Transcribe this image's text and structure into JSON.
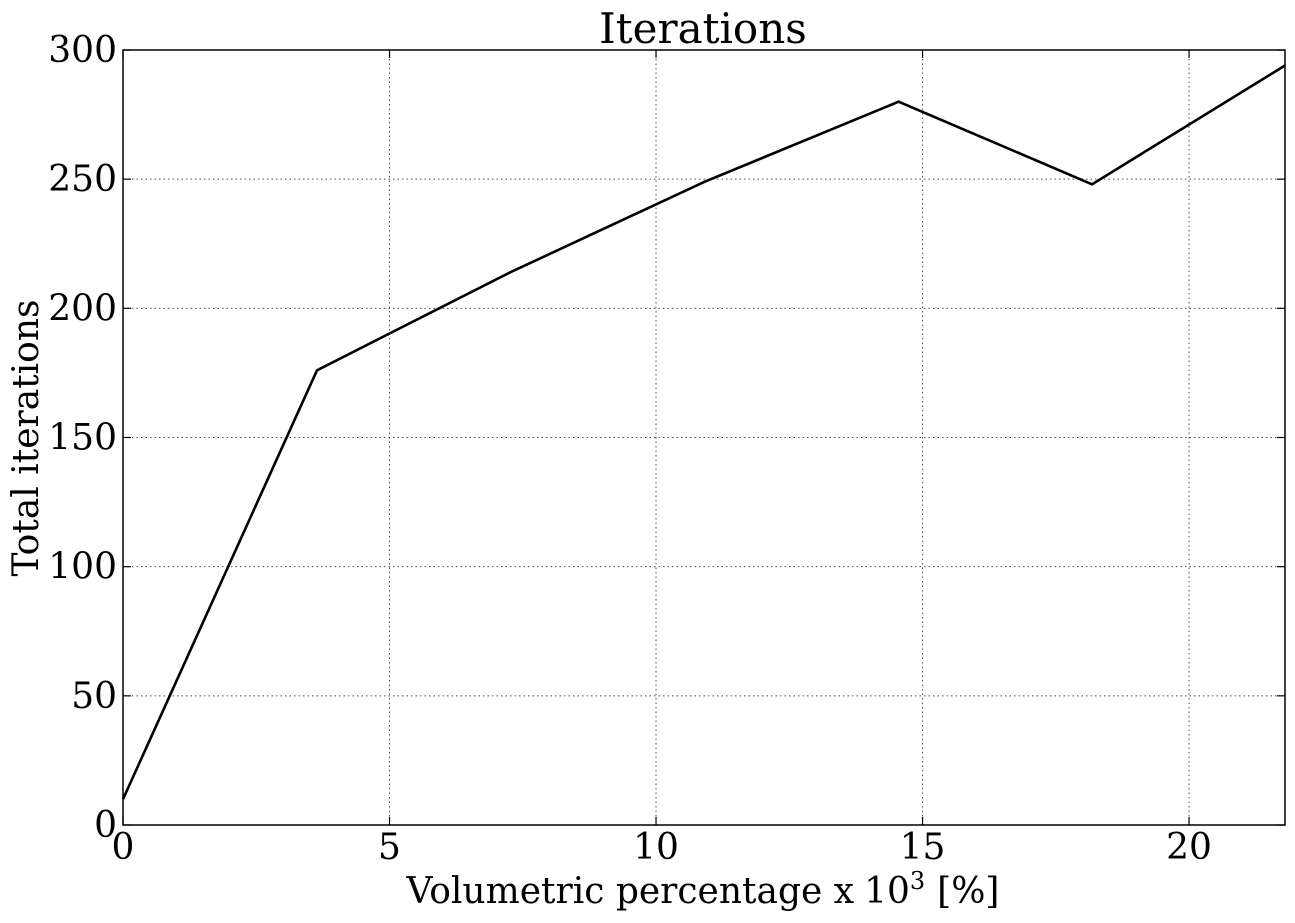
{
  "chart_data": {
    "type": "line",
    "title": "Iterations",
    "xlabel": "Volumetric percentage x",
    "xlabel_power_base": "10",
    "xlabel_power_exp": "3",
    "xlabel_unit": "[%]",
    "ylabel": "Total iterations",
    "xlim": [
      0,
      21.8
    ],
    "ylim": [
      0,
      300
    ],
    "x_ticks": [
      0,
      5,
      10,
      15,
      20
    ],
    "y_ticks": [
      0,
      50,
      100,
      150,
      200,
      250,
      300
    ],
    "grid": true,
    "series": [
      {
        "x": [
          0,
          3.64,
          7.27,
          10.91,
          14.55,
          18.18,
          21.8
        ],
        "y": [
          10,
          176,
          214,
          249,
          280,
          248,
          294
        ]
      }
    ]
  }
}
